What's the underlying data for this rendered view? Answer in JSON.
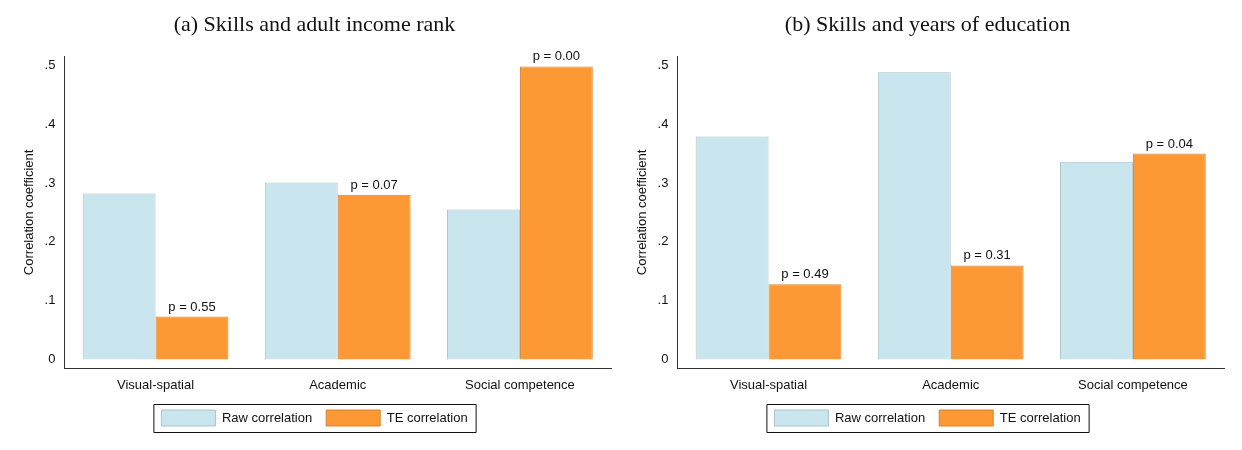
{
  "chart_data": [
    {
      "type": "bar",
      "title": "(a) Skills and adult income rank",
      "ylabel": "Correlation coefficient",
      "categories": [
        "Visual-spatial",
        "Academic",
        "Social competence"
      ],
      "series": [
        {
          "name": "Raw correlation",
          "color": "#c9e5ee",
          "values": [
            0.282,
            0.301,
            0.255
          ]
        },
        {
          "name": "TE correlation",
          "color": "#fd9935",
          "values": [
            0.073,
            0.28,
            0.498
          ]
        }
      ],
      "annotations": [
        {
          "text": "p = 0.55",
          "x": "Visual-spatial",
          "y": 0.073
        },
        {
          "text": "p = 0.07",
          "x": "Academic",
          "y": 0.28
        },
        {
          "text": "p = 0.00",
          "x": "Social competence",
          "y": 0.498
        }
      ],
      "ylim": [
        -0.015,
        0.515
      ],
      "yticks": [
        0,
        {
          "value": 0.1,
          "label": ".1"
        },
        {
          "value": 0.2,
          "label": ".2"
        },
        {
          "value": 0.3,
          "label": ".3"
        },
        {
          "value": 0.4,
          "label": ".4"
        },
        {
          "value": 0.5,
          "label": ".5"
        }
      ],
      "legend": "bottom"
    },
    {
      "type": "bar",
      "title": "(b) Skills and years of education",
      "ylabel": "Correlation coefficient",
      "categories": [
        "Visual-spatial",
        "Academic",
        "Social competence"
      ],
      "series": [
        {
          "name": "Raw correlation",
          "color": "#c9e5ee",
          "values": [
            0.379,
            0.488,
            0.336
          ]
        },
        {
          "name": "TE correlation",
          "color": "#fd9935",
          "values": [
            0.128,
            0.16,
            0.35
          ]
        }
      ],
      "annotations": [
        {
          "text": "p = 0.49",
          "x": "Visual-spatial",
          "y": 0.128
        },
        {
          "text": "p = 0.31",
          "x": "Academic",
          "y": 0.16
        },
        {
          "text": "p = 0.04",
          "x": "Social competence",
          "y": 0.35
        }
      ],
      "ylim": [
        -0.015,
        0.515
      ],
      "yticks": [
        0,
        {
          "value": 0.1,
          "label": ".1"
        },
        {
          "value": 0.2,
          "label": ".2"
        },
        {
          "value": 0.3,
          "label": ".3"
        },
        {
          "value": 0.4,
          "label": ".4"
        },
        {
          "value": 0.5,
          "label": ".5"
        }
      ],
      "legend": "bottom"
    }
  ]
}
